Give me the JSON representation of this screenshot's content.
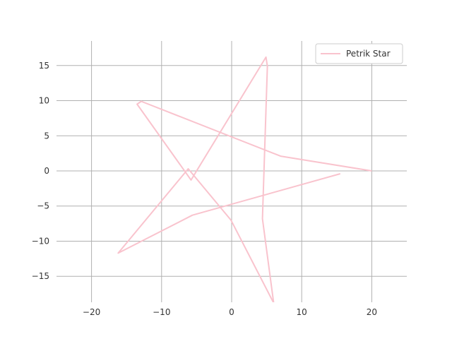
{
  "chart_data": {
    "type": "line",
    "title": "",
    "xlabel": "",
    "ylabel": "",
    "xlim": [
      -25,
      25
    ],
    "ylim": [
      -18.7,
      18.5
    ],
    "xticks": [
      -20,
      -10,
      0,
      10,
      20
    ],
    "yticks": [
      15,
      10,
      5,
      0,
      -5,
      -10,
      -15
    ],
    "xtick_labels": [
      "−20",
      "−10",
      "0",
      "10",
      "20"
    ],
    "ytick_labels": [
      "15",
      "10",
      "5",
      "0",
      "−5",
      "−10",
      "−15"
    ],
    "grid": true,
    "legend": {
      "placement": "top-right"
    },
    "series": [
      {
        "name": "Petrik Star",
        "color": "#f9c3cd",
        "points": [
          [
            20,
            0
          ],
          [
            7,
            2.1
          ],
          [
            -12.9,
            9.9
          ],
          [
            -13.5,
            9.5
          ],
          [
            -5.8,
            -1.3
          ],
          [
            4.9,
            16.2
          ],
          [
            5.1,
            14.9
          ],
          [
            4.4,
            -6.8
          ],
          [
            6,
            -18.8
          ],
          [
            -0.1,
            -7
          ],
          [
            -6.2,
            0.3
          ],
          [
            -16.2,
            -11.7
          ],
          [
            -5.6,
            -6.3
          ],
          [
            15.5,
            -0.4
          ]
        ]
      }
    ]
  }
}
